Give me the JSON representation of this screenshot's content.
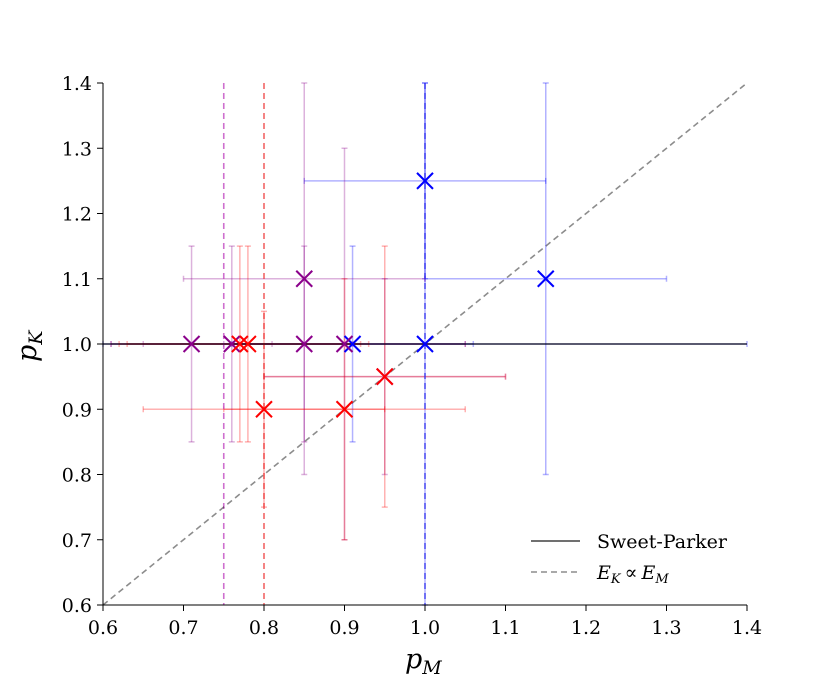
{
  "chart_data": {
    "type": "scatter",
    "xlabel": "p",
    "xlabel_sub": "M",
    "ylabel": "p",
    "ylabel_sub": "K",
    "xlim": [
      0.6,
      1.4
    ],
    "ylim": [
      0.6,
      1.4
    ],
    "x_ticks": [
      "0.6",
      "0.7",
      "0.8",
      "0.9",
      "1.0",
      "1.1",
      "1.2",
      "1.3",
      "1.4"
    ],
    "y_ticks": [
      "0.6",
      "0.7",
      "0.8",
      "0.9",
      "1.0",
      "1.1",
      "1.2",
      "1.3",
      "1.4"
    ],
    "legend": {
      "position": "lower-right",
      "sweet_parker": "Sweet-Parker",
      "ek_prop_em": "E",
      "ek_sub": "K",
      "prop_symbol": "∝",
      "em_sub": "M"
    },
    "reference_lines": {
      "sweet_parker_y": 1.0,
      "proportional_line": [
        [
          0.6,
          0.6
        ],
        [
          1.4,
          1.4
        ]
      ],
      "vertical_means": [
        {
          "x": 0.75,
          "color": "#bf40bf"
        },
        {
          "x": 0.8,
          "color": "#ee3333"
        },
        {
          "x": 1.0,
          "color": "#3333ee"
        }
      ]
    },
    "series": [
      {
        "name": "blue",
        "color": "#0000ff",
        "points": [
          {
            "x": 1.0,
            "y": 1.25,
            "xerr": 0.15,
            "yerr": 0.15
          },
          {
            "x": 1.15,
            "y": 1.1,
            "xerr": 0.15,
            "yerr": 0.3
          },
          {
            "x": 0.91,
            "y": 1.0,
            "xerr": 0.15,
            "yerr": 0.15
          },
          {
            "x": 1.0,
            "y": 1.0,
            "xerr": 0.4,
            "yerr": 0.4
          }
        ]
      },
      {
        "name": "purple",
        "color": "#8b008b",
        "points": [
          {
            "x": 0.71,
            "y": 1.0,
            "xerr": 0.1,
            "yerr": 0.15
          },
          {
            "x": 0.76,
            "y": 1.0,
            "xerr": 0.15,
            "yerr": 0.15
          },
          {
            "x": 0.85,
            "y": 1.0,
            "xerr": 0.2,
            "yerr": 0.15
          },
          {
            "x": 0.85,
            "y": 1.1,
            "xerr": 0.15,
            "yerr": 0.3
          },
          {
            "x": 0.9,
            "y": 1.0,
            "xerr": 0.15,
            "yerr": 0.3
          },
          {
            "x": 0.95,
            "y": 0.95,
            "xerr": 0.15,
            "yerr": 0.15
          }
        ]
      },
      {
        "name": "red",
        "color": "#ff0000",
        "points": [
          {
            "x": 0.77,
            "y": 1.0,
            "xerr": 0.15,
            "yerr": 0.15
          },
          {
            "x": 0.78,
            "y": 1.0,
            "xerr": 0.15,
            "yerr": 0.15
          },
          {
            "x": 0.8,
            "y": 0.9,
            "xerr": 0.15,
            "yerr": 0.15
          },
          {
            "x": 0.9,
            "y": 0.9,
            "xerr": 0.15,
            "yerr": 0.2
          },
          {
            "x": 0.95,
            "y": 0.95,
            "xerr": 0.15,
            "yerr": 0.2
          }
        ]
      }
    ]
  }
}
